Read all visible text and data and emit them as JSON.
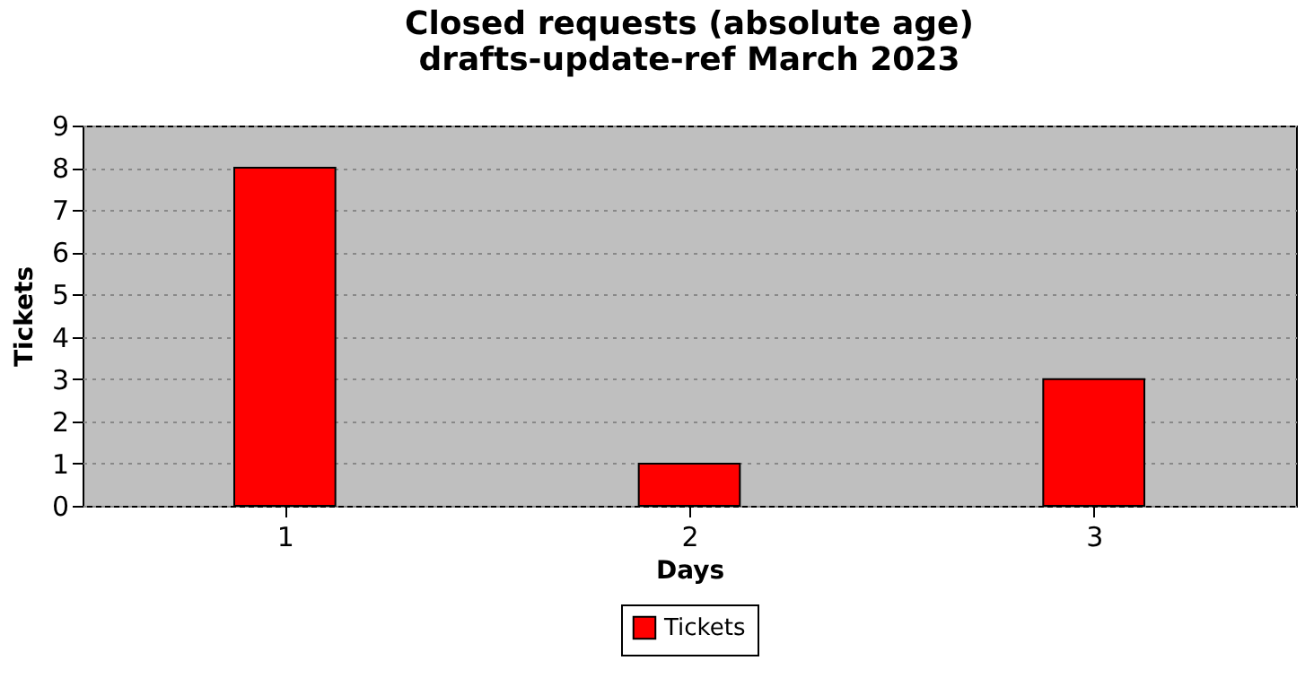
{
  "chart_data": {
    "type": "bar",
    "title": "Closed requests (absolute age)",
    "subtitle": "drafts-update-ref March 2023",
    "xlabel": "Days",
    "ylabel": "Tickets",
    "x": [
      1,
      2,
      3
    ],
    "series": [
      {
        "name": "Tickets",
        "color": "#ff0000",
        "values": [
          8,
          1,
          3
        ]
      }
    ],
    "xlim": [
      0.5,
      3.5
    ],
    "xticks": [
      1,
      2,
      3
    ],
    "ylim": [
      0,
      9
    ],
    "yticks": [
      0,
      1,
      2,
      3,
      4,
      5,
      6,
      7,
      8,
      9
    ],
    "grid": "y",
    "legend": "bottom"
  }
}
